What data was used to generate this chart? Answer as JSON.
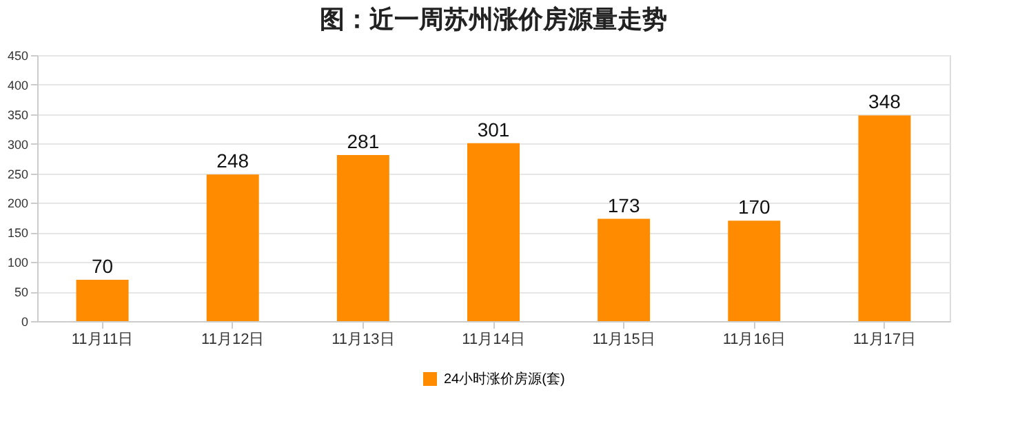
{
  "chart_data": {
    "type": "bar",
    "title": "图：近一周苏州涨价房源量走势",
    "categories": [
      "11月11日",
      "11月12日",
      "11月13日",
      "11月14日",
      "11月15日",
      "11月16日",
      "11月17日"
    ],
    "series": [
      {
        "name": "24小时涨价房源(套)",
        "color": "#ff8c00",
        "values": [
          70,
          248,
          281,
          301,
          173,
          170,
          348
        ]
      }
    ],
    "ylim": [
      0,
      450
    ],
    "yticks": [
      0,
      50,
      100,
      150,
      200,
      250,
      300,
      350,
      400,
      450
    ],
    "grid": "y",
    "legend": "bottom",
    "data_labels": true
  }
}
